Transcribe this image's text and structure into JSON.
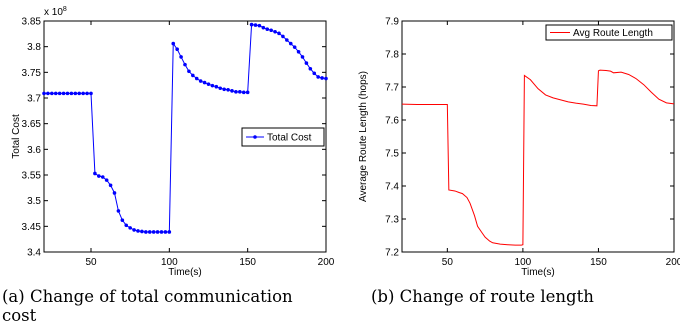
{
  "captions": {
    "left_line1": "(a) Change of total communication",
    "left_line2": "cost",
    "right": "(b) Change of route length"
  },
  "chart_data": [
    {
      "type": "line",
      "title": "",
      "xlabel": "Time(s)",
      "ylabel": "Total Cost",
      "multiplier": "x 10",
      "multiplier_exp": "8",
      "xlim": [
        20,
        200
      ],
      "ylim": [
        3.4,
        3.85
      ],
      "xticks": [
        50,
        100,
        150,
        200
      ],
      "yticks": [
        3.4,
        3.45,
        3.5,
        3.55,
        3.6,
        3.65,
        3.7,
        3.75,
        3.8,
        3.85
      ],
      "ytick_labels": [
        "3.4",
        "3.45",
        "3.5",
        "3.55",
        "3.6",
        "3.65",
        "3.7",
        "3.75",
        "3.8",
        "3.85"
      ],
      "grid": false,
      "legend_position": "right",
      "color": "#0000ff",
      "series": [
        {
          "name": "Total Cost",
          "markers": true,
          "x": [
            20,
            22.5,
            25,
            27.5,
            30,
            32.5,
            35,
            37.5,
            40,
            42.5,
            45,
            47.5,
            50,
            52.5,
            55,
            57.5,
            60,
            62.5,
            65,
            67.5,
            70,
            72.5,
            75,
            77.5,
            80,
            82.5,
            85,
            87.5,
            90,
            92.5,
            95,
            97.5,
            100,
            102.5,
            105,
            107.5,
            110,
            112.5,
            115,
            117.5,
            120,
            122.5,
            125,
            127.5,
            130,
            132.5,
            135,
            137.5,
            140,
            142.5,
            145,
            147.5,
            150,
            152.5,
            155,
            157.5,
            160,
            162.5,
            165,
            167.5,
            170,
            172.5,
            175,
            177.5,
            180,
            182.5,
            185,
            187.5,
            190,
            192.5,
            195,
            197.5,
            200
          ],
          "y": [
            3.709,
            3.709,
            3.709,
            3.709,
            3.709,
            3.709,
            3.709,
            3.709,
            3.709,
            3.709,
            3.709,
            3.709,
            3.709,
            3.553,
            3.548,
            3.546,
            3.54,
            3.53,
            3.515,
            3.48,
            3.462,
            3.452,
            3.447,
            3.443,
            3.441,
            3.44,
            3.439,
            3.439,
            3.439,
            3.439,
            3.439,
            3.439,
            3.439,
            3.806,
            3.795,
            3.78,
            3.765,
            3.752,
            3.744,
            3.738,
            3.733,
            3.73,
            3.727,
            3.724,
            3.722,
            3.719,
            3.717,
            3.716,
            3.714,
            3.712,
            3.712,
            3.711,
            3.711,
            3.843,
            3.842,
            3.841,
            3.837,
            3.834,
            3.832,
            3.829,
            3.826,
            3.82,
            3.813,
            3.806,
            3.799,
            3.79,
            3.78,
            3.768,
            3.757,
            3.748,
            3.741,
            3.739,
            3.738
          ]
        }
      ]
    },
    {
      "type": "line",
      "title": "",
      "xlabel": "Time(s)",
      "ylabel": "Average Route Length (hops)",
      "xlim": [
        20,
        200
      ],
      "ylim": [
        7.2,
        7.9
      ],
      "xticks": [
        50,
        100,
        150,
        200
      ],
      "yticks": [
        7.2,
        7.3,
        7.4,
        7.5,
        7.6,
        7.7,
        7.8,
        7.9
      ],
      "ytick_labels": [
        "7.2",
        "7.3",
        "7.4",
        "7.5",
        "7.6",
        "7.7",
        "7.8",
        "7.9"
      ],
      "grid": false,
      "legend_position": "top-right",
      "color": "#ff0000",
      "series": [
        {
          "name": "Avg Route Length",
          "markers": false,
          "x": [
            20,
            30,
            40,
            48,
            50,
            51,
            55,
            58,
            60,
            63,
            65,
            68,
            70,
            73,
            75,
            78,
            80,
            85,
            90,
            95,
            99,
            100,
            101,
            105,
            110,
            115,
            120,
            125,
            130,
            135,
            140,
            145,
            149,
            150,
            151,
            155,
            158,
            160,
            165,
            170,
            175,
            180,
            185,
            190,
            195,
            200
          ],
          "y": [
            7.648,
            7.647,
            7.647,
            7.647,
            7.647,
            7.388,
            7.385,
            7.38,
            7.377,
            7.365,
            7.348,
            7.31,
            7.278,
            7.258,
            7.245,
            7.233,
            7.228,
            7.224,
            7.222,
            7.221,
            7.221,
            7.222,
            7.735,
            7.722,
            7.695,
            7.676,
            7.667,
            7.661,
            7.655,
            7.651,
            7.648,
            7.644,
            7.643,
            7.749,
            7.751,
            7.75,
            7.748,
            7.743,
            7.745,
            7.738,
            7.725,
            7.707,
            7.684,
            7.663,
            7.652,
            7.649
          ]
        }
      ]
    }
  ]
}
